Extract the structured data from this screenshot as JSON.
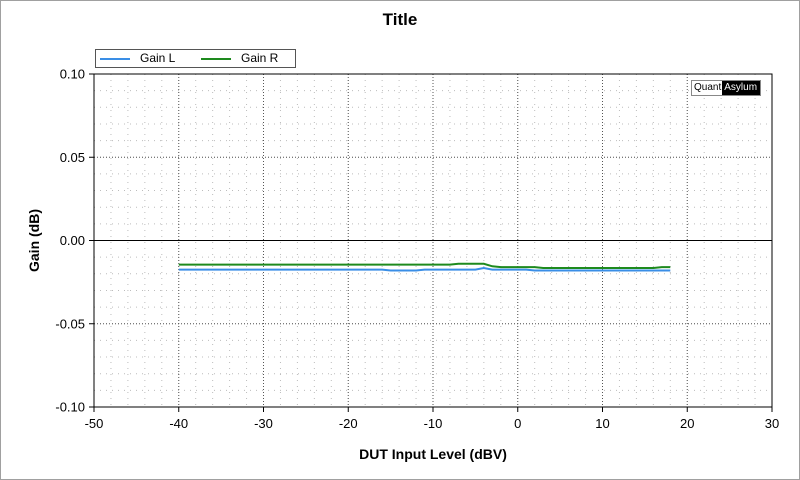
{
  "chart_data": {
    "type": "line",
    "title": "Title",
    "xlabel": "DUT Input Level (dBV)",
    "ylabel": "Gain (dB)",
    "xlim": [
      -50,
      30
    ],
    "ylim": [
      -0.1,
      0.1
    ],
    "x_ticks": [
      "-50",
      "-40",
      "-30",
      "-20",
      "-10",
      "0",
      "10",
      "20",
      "30"
    ],
    "y_ticks": [
      "0.10",
      "0.05",
      "0.00",
      "-0.05",
      "-0.10"
    ],
    "grid": true,
    "legend_position": "top-left",
    "series": [
      {
        "name": "Gain L",
        "color": "#3a8ee6",
        "points": [
          [
            -40,
            -0.0175
          ],
          [
            -16,
            -0.0175
          ],
          [
            -15,
            -0.018
          ],
          [
            -12,
            -0.018
          ],
          [
            -11,
            -0.0175
          ],
          [
            -5,
            -0.0175
          ],
          [
            -4,
            -0.0165
          ],
          [
            -3,
            -0.0175
          ],
          [
            1,
            -0.0175
          ],
          [
            2,
            -0.018
          ],
          [
            18,
            -0.018
          ]
        ]
      },
      {
        "name": "Gain R",
        "color": "#1e8a1e",
        "points": [
          [
            -40,
            -0.0145
          ],
          [
            -8,
            -0.0145
          ],
          [
            -7,
            -0.014
          ],
          [
            -4,
            -0.014
          ],
          [
            -3,
            -0.0155
          ],
          [
            -2,
            -0.016
          ],
          [
            2,
            -0.016
          ],
          [
            3,
            -0.0165
          ],
          [
            16,
            -0.0165
          ],
          [
            17,
            -0.016
          ],
          [
            18,
            -0.016
          ]
        ]
      }
    ]
  },
  "watermark": {
    "left": "Quant",
    "right": "Asylum"
  }
}
